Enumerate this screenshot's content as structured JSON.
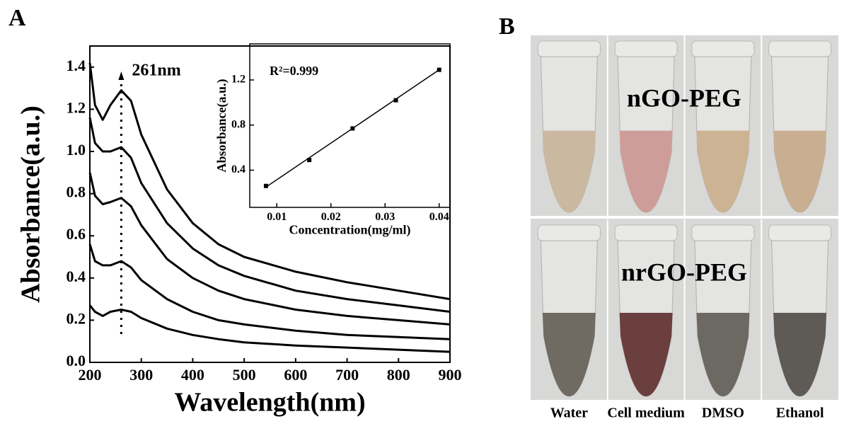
{
  "panels": [
    "A",
    "B"
  ],
  "chart_data": [
    {
      "type": "line",
      "xlabel": "Wavelength(nm)",
      "ylabel": "Absorbance(a.u.)",
      "x": [
        200,
        210,
        225,
        240,
        261,
        280,
        300,
        350,
        400,
        450,
        500,
        600,
        700,
        800,
        900
      ],
      "series": [
        {
          "color": "#000000",
          "values": [
            1.42,
            1.22,
            1.15,
            1.22,
            1.29,
            1.24,
            1.08,
            0.82,
            0.66,
            0.56,
            0.5,
            0.43,
            0.38,
            0.34,
            0.3
          ]
        },
        {
          "color": "#000000",
          "values": [
            1.16,
            1.04,
            1.0,
            1.0,
            1.02,
            0.97,
            0.85,
            0.66,
            0.54,
            0.46,
            0.41,
            0.34,
            0.3,
            0.27,
            0.24
          ]
        },
        {
          "color": "#000000",
          "values": [
            0.9,
            0.79,
            0.75,
            0.76,
            0.78,
            0.74,
            0.65,
            0.49,
            0.4,
            0.34,
            0.3,
            0.25,
            0.22,
            0.2,
            0.18
          ]
        },
        {
          "color": "#000000",
          "values": [
            0.56,
            0.48,
            0.46,
            0.46,
            0.48,
            0.45,
            0.39,
            0.3,
            0.24,
            0.2,
            0.18,
            0.15,
            0.13,
            0.12,
            0.11
          ]
        },
        {
          "color": "#000000",
          "values": [
            0.27,
            0.24,
            0.22,
            0.24,
            0.25,
            0.24,
            0.21,
            0.16,
            0.13,
            0.11,
            0.095,
            0.08,
            0.07,
            0.06,
            0.05
          ]
        }
      ],
      "annotation": {
        "text": "261nm",
        "x": 261
      },
      "xlim": [
        200,
        900
      ],
      "xticks": [
        200,
        300,
        400,
        500,
        600,
        700,
        800,
        900
      ],
      "ylim": [
        0,
        1.5
      ],
      "yticks": [
        {
          "value": 0,
          "label": "0.0"
        },
        {
          "value": 0.2,
          "label": "0.2"
        },
        {
          "value": 0.4,
          "label": "0.4"
        },
        {
          "value": 0.6,
          "label": "0.6"
        },
        {
          "value": 0.8,
          "label": "0.8"
        },
        {
          "value": 1.0,
          "label": "1.0"
        },
        {
          "value": 1.2,
          "label": "1.2"
        },
        {
          "value": 1.4,
          "label": "1.4"
        }
      ]
    },
    {
      "type": "scatter",
      "xlabel": "Concentration(mg/ml)",
      "ylabel": "Absorbance(a.u.)",
      "annotation": {
        "text": "R²=0.999"
      },
      "x": [
        0.008,
        0.016,
        0.024,
        0.032,
        0.04
      ],
      "values": [
        0.26,
        0.49,
        0.77,
        1.02,
        1.29
      ],
      "color": "#000000",
      "fit": {
        "x": [
          0.008,
          0.04
        ],
        "values": [
          0.25,
          1.29
        ]
      },
      "xlim": [
        0.005,
        0.042
      ],
      "xticks": [
        0.01,
        0.02,
        0.03,
        0.04
      ],
      "ylim": [
        0.07,
        1.52
      ],
      "yticks": [
        0.4,
        0.8,
        1.2
      ]
    }
  ],
  "photo": {
    "row_labels": [
      "nGO-PEG",
      "nrGO-PEG"
    ],
    "column_labels": [
      "Water",
      "Cell medium",
      "DMSO",
      "Ethanol"
    ]
  }
}
